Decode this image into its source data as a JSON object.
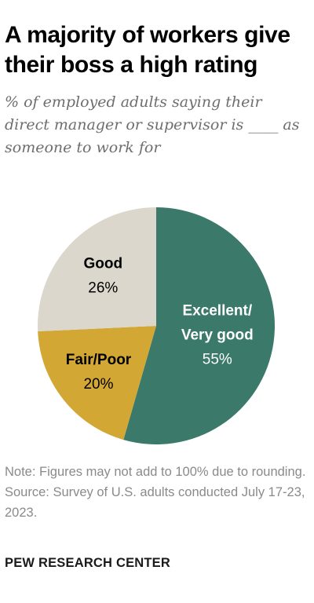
{
  "header": {
    "title": "A majority of workers give their boss a high rating",
    "subtitle": "% of employed adults saying their direct manager or supervisor is ____ as someone to work for"
  },
  "chart_data": {
    "type": "pie",
    "slices": [
      {
        "label_lines": [
          "Excellent/",
          "Very good"
        ],
        "value": 55,
        "value_label": "55%",
        "color": "#3b7a6a",
        "text_color": "#ffffff"
      },
      {
        "label_lines": [
          "Fair/Poor"
        ],
        "value": 20,
        "value_label": "20%",
        "color": "#d3a733",
        "text_color": "#000000"
      },
      {
        "label_lines": [
          "Good"
        ],
        "value": 26,
        "value_label": "26%",
        "color": "#dcd7cc",
        "text_color": "#000000"
      }
    ]
  },
  "notes": {
    "note": "Note: Figures may not add to 100% due to rounding.",
    "source": "Source: Survey of U.S. adults conducted July 17-23, 2023."
  },
  "footer": {
    "brand": "PEW RESEARCH CENTER"
  }
}
